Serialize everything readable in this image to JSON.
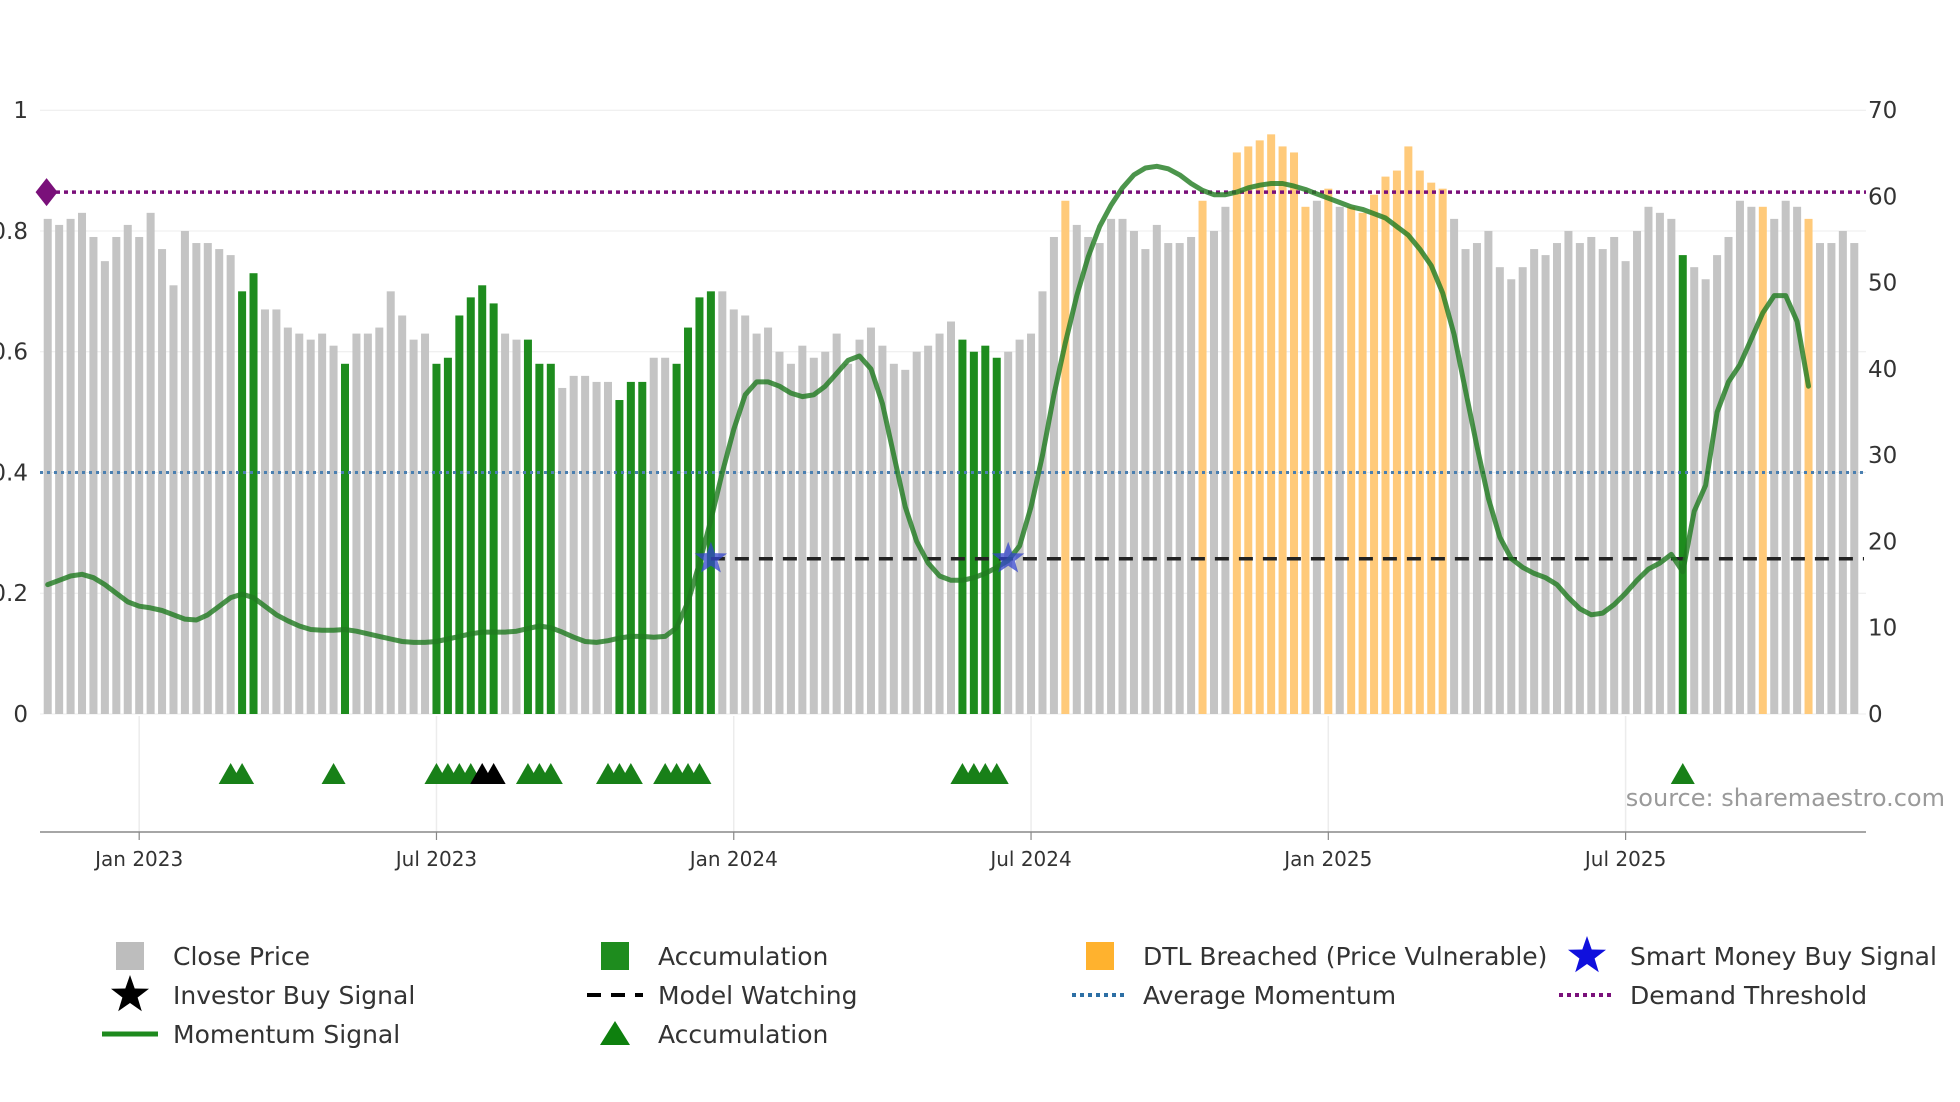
{
  "colors": {
    "close_price": "#c4c4c4",
    "accumulation": "#1e8c1e",
    "dtl_breached": "#ffca7a",
    "momentum": "#1f7a1f",
    "average_momentum": "#4a7fb0",
    "demand_threshold": "#7a107a",
    "model_watching": "#222222",
    "accumulation_marker": "#188018",
    "investor_signal": "#000000",
    "smart_money": "#3344cc"
  },
  "chart_data": {
    "type": "bar",
    "title": "",
    "source": "source: sharemaestro.com",
    "left_axis": {
      "ylim": [
        0,
        1.05
      ],
      "ticks": [
        0,
        0.2,
        0.4,
        0.6,
        0.8,
        1
      ],
      "tick_labels": [
        "0",
        "0.2",
        "0.4",
        "0.6",
        "0.8",
        "1"
      ]
    },
    "right_axis": {
      "ylim": [
        0,
        73.5
      ],
      "ticks": [
        0,
        10,
        20,
        30,
        40,
        50,
        60,
        70
      ],
      "tick_labels": [
        "0",
        "10",
        "20",
        "30",
        "40",
        "50",
        "60",
        "70"
      ]
    },
    "x_axis": {
      "start_index": 0,
      "end_index": 156,
      "tick_indices": [
        8.5,
        34.5,
        60.5,
        86.5,
        112.5,
        138.5
      ],
      "tick_labels": [
        "Jan 2023",
        "Jul 2023",
        "Jan 2024",
        "Jul 2024",
        "Jan 2025",
        "Jul 2025"
      ]
    },
    "close_price": [
      0.82,
      0.81,
      0.82,
      0.83,
      0.79,
      0.75,
      0.79,
      0.81,
      0.79,
      0.83,
      0.77,
      0.71,
      0.8,
      0.78,
      0.78,
      0.77,
      0.76,
      0.7,
      0.73,
      0.67,
      0.67,
      0.64,
      0.63,
      0.62,
      0.63,
      0.61,
      0.58,
      0.63,
      0.63,
      0.64,
      0.7,
      0.66,
      0.62,
      0.63,
      0.58,
      0.59,
      0.66,
      0.69,
      0.71,
      0.68,
      0.63,
      0.62,
      0.62,
      0.58,
      0.58,
      0.54,
      0.56,
      0.56,
      0.55,
      0.55,
      0.52,
      0.55,
      0.55,
      0.59,
      0.59,
      0.58,
      0.64,
      0.69,
      0.7,
      0.7,
      0.67,
      0.66,
      0.63,
      0.64,
      0.6,
      0.58,
      0.61,
      0.59,
      0.6,
      0.63,
      0.58,
      0.62,
      0.64,
      0.61,
      0.58,
      0.57,
      0.6,
      0.61,
      0.63,
      0.65,
      0.62,
      0.6,
      0.61,
      0.59,
      0.6,
      0.62,
      0.63,
      0.7,
      0.79,
      0.85,
      0.81,
      0.79,
      0.78,
      0.82,
      0.82,
      0.8,
      0.77,
      0.81,
      0.78,
      0.78,
      0.79,
      0.85,
      0.8,
      0.84,
      0.93,
      0.94,
      0.95,
      0.96,
      0.94,
      0.93,
      0.84,
      0.85,
      0.87,
      0.84,
      0.84,
      0.83,
      0.86,
      0.89,
      0.9,
      0.94,
      0.9,
      0.88,
      0.87,
      0.82,
      0.77,
      0.78,
      0.8,
      0.74,
      0.72,
      0.74,
      0.77,
      0.76,
      0.78,
      0.8,
      0.78,
      0.79,
      0.77,
      0.79,
      0.75,
      0.8,
      0.84,
      0.83,
      0.82,
      0.76,
      0.74,
      0.72,
      0.76,
      0.79,
      0.85,
      0.84,
      0.84,
      0.82,
      0.85,
      0.84,
      0.82,
      0.78,
      0.78,
      0.8,
      0.78
    ],
    "accumulation_indices": [
      17,
      18,
      26,
      34,
      35,
      36,
      37,
      38,
      39,
      42,
      43,
      44,
      50,
      51,
      52,
      55,
      56,
      57,
      58,
      80,
      81,
      82,
      83,
      143
    ],
    "dtl_breached_indices": [
      89,
      101,
      104,
      105,
      106,
      107,
      108,
      109,
      110,
      112,
      114,
      115,
      116,
      117,
      118,
      119,
      120,
      121,
      122,
      150,
      154
    ],
    "momentum": [
      15.0,
      15.5,
      16.0,
      16.2,
      15.8,
      15.0,
      14.0,
      13.0,
      12.5,
      12.3,
      12.0,
      11.5,
      11.0,
      10.9,
      11.5,
      12.5,
      13.5,
      13.9,
      13.5,
      12.5,
      11.5,
      10.8,
      10.2,
      9.8,
      9.7,
      9.7,
      9.8,
      9.6,
      9.3,
      9.0,
      8.7,
      8.4,
      8.3,
      8.3,
      8.4,
      8.7,
      9.0,
      9.3,
      9.5,
      9.5,
      9.5,
      9.6,
      9.9,
      10.2,
      10.0,
      9.5,
      8.9,
      8.4,
      8.3,
      8.5,
      8.8,
      9.0,
      9.0,
      8.9,
      9.0,
      10.0,
      13.0,
      17.5,
      22.5,
      28.0,
      33.0,
      37.0,
      38.5,
      38.5,
      38.0,
      37.2,
      36.8,
      37.0,
      38.0,
      39.5,
      41.0,
      41.5,
      40.0,
      36.0,
      30.0,
      24.0,
      20.0,
      17.5,
      16.0,
      15.5,
      15.5,
      15.8,
      16.3,
      17.0,
      17.8,
      19.5,
      24.0,
      30.0,
      37.0,
      43.0,
      48.5,
      53.0,
      56.5,
      59.0,
      61.0,
      62.5,
      63.3,
      63.5,
      63.2,
      62.5,
      61.5,
      60.7,
      60.2,
      60.2,
      60.5,
      61.0,
      61.3,
      61.5,
      61.5,
      61.2,
      60.8,
      60.3,
      59.8,
      59.3,
      58.8,
      58.5,
      58.0,
      57.5,
      56.5,
      55.5,
      53.9,
      52.0,
      48.8,
      44.0,
      37.5,
      31.0,
      25.0,
      20.5,
      18.0,
      17.0,
      16.3,
      15.8,
      15.0,
      13.5,
      12.2,
      11.5,
      11.7,
      12.7,
      14.0,
      15.5,
      16.8,
      17.5,
      18.5,
      16.5,
      23.5,
      26.5,
      35.0,
      38.5,
      40.5,
      43.5,
      46.5,
      48.5,
      48.5,
      45.5,
      38.0
    ],
    "average_momentum": 28,
    "demand_threshold": 60.5,
    "model_watching": {
      "level": 18,
      "from_index": 58.5
    },
    "smart_money_signals": [
      {
        "index": 58,
        "value": 18
      },
      {
        "index": 84,
        "value": 18
      }
    ],
    "accumulation_markers": [
      16.5,
      17.5,
      25.5,
      34.5,
      35.5,
      36.5,
      37.5,
      42.5,
      43.5,
      44.5,
      49.5,
      50.5,
      51.5,
      54.5,
      55.5,
      56.5,
      57.5,
      80.5,
      81.5,
      82.5,
      83.5,
      143.5
    ],
    "investor_markers": [
      38.5,
      39.5
    ],
    "demand_marker": {
      "index": 0.4,
      "value": 60.5
    },
    "legend": [
      {
        "label": "Close Price",
        "symbol": "square",
        "color": "#bdbdbd"
      },
      {
        "label": "Accumulation",
        "symbol": "square",
        "color": "#1e8c1e"
      },
      {
        "label": "DTL Breached (Price Vulnerable)",
        "symbol": "square",
        "color": "#ffb22e"
      },
      {
        "label": "Smart Money Buy Signal",
        "symbol": "star",
        "color": "#1010dd"
      },
      {
        "label": "Investor Buy Signal",
        "symbol": "star",
        "color": "#000000"
      },
      {
        "label": "Model Watching",
        "symbol": "dash",
        "color": "#000000"
      },
      {
        "label": "Average Momentum",
        "symbol": "dot",
        "color": "#2c6fa5"
      },
      {
        "label": "Demand Threshold",
        "symbol": "dot",
        "color": "#7a107a"
      },
      {
        "label": "Momentum Signal",
        "symbol": "line",
        "color": "#1e8a1e"
      },
      {
        "label": "Accumulation",
        "symbol": "triangle",
        "color": "#0e800e"
      }
    ]
  }
}
